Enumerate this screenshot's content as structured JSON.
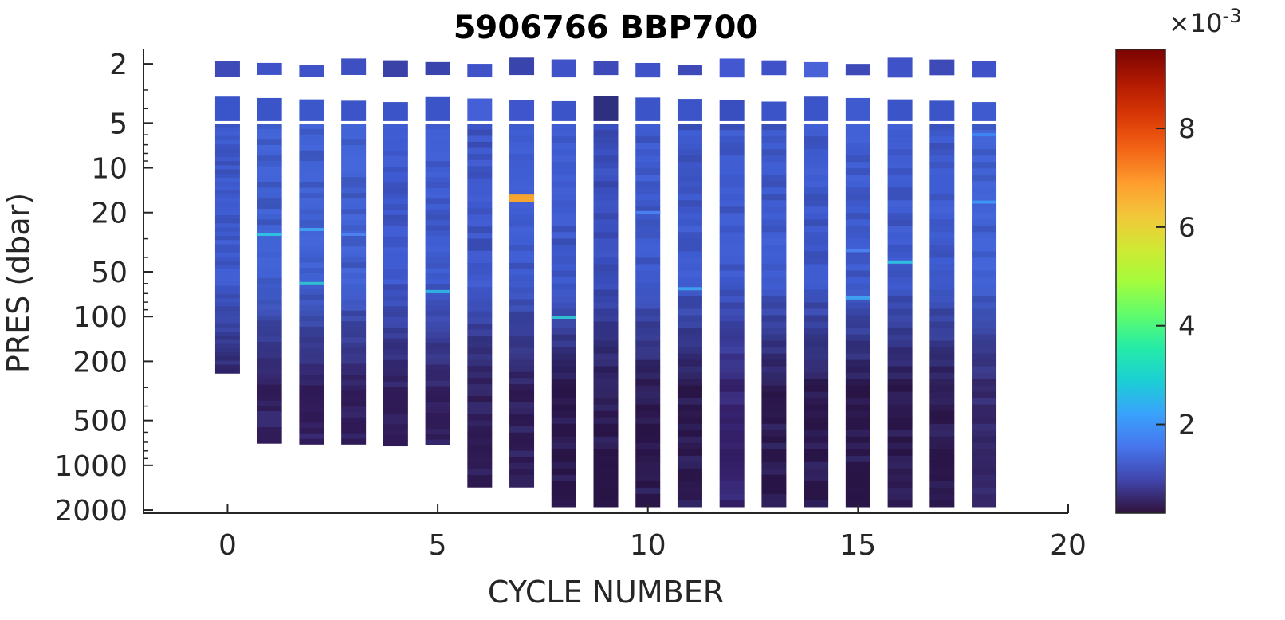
{
  "chart_data": {
    "type": "heatmap",
    "title": "5906766 BBP700",
    "xlabel": "CYCLE NUMBER",
    "ylabel": "PRES (dbar)",
    "xlim": [
      -2,
      20
    ],
    "ylim": [
      2100,
      1.6
    ],
    "yscale": "log",
    "x_ticks": [
      0,
      5,
      10,
      15,
      20
    ],
    "y_ticks": [
      2,
      5,
      10,
      20,
      50,
      100,
      200,
      500,
      1000,
      2000
    ],
    "colorbar": {
      "range": [
        0.0002,
        0.0096
      ],
      "ticks": [
        2,
        4,
        6,
        8
      ],
      "exponent_label": "×10",
      "exponent_value": "-3",
      "colormap": [
        "#30123b",
        "#4145ab",
        "#4675ed",
        "#39a2fc",
        "#1bcfd4",
        "#24eca6",
        "#61fc6c",
        "#a4fc3b",
        "#d1e834",
        "#f3c63a",
        "#fe9b2d",
        "#f36315",
        "#d93806",
        "#b11901",
        "#7a0402"
      ]
    },
    "cycles": [
      {
        "cycle": 0,
        "bottom": 240,
        "surface": "#3d4ab8",
        "upper": "#3a55c9",
        "mid": "#3e5bd0",
        "deep": "#2c1a55"
      },
      {
        "cycle": 1,
        "bottom": 710,
        "surface": "#3f52c8",
        "upper": "#3b55c8",
        "mid": "#4062d5",
        "deep": "#311c5a"
      },
      {
        "cycle": 2,
        "bottom": 720,
        "surface": "#3f52c8",
        "upper": "#3c57ca",
        "mid": "#4062d5",
        "deep": "#311c5a"
      },
      {
        "cycle": 3,
        "bottom": 720,
        "surface": "#3e4fc2",
        "upper": "#3b55c8",
        "mid": "#4163d6",
        "deep": "#311c5a"
      },
      {
        "cycle": 4,
        "bottom": 740,
        "surface": "#3a42a8",
        "upper": "#3b55c8",
        "mid": "#3e5ad0",
        "deep": "#311c5a"
      },
      {
        "cycle": 5,
        "bottom": 730,
        "surface": "#3a44ad",
        "upper": "#3b55c8",
        "mid": "#3f5dd2",
        "deep": "#311c5a"
      },
      {
        "cycle": 6,
        "bottom": 1400,
        "surface": "#3f52c8",
        "upper": "#4560d6",
        "mid": "#3d58cc",
        "deep": "#2e1a52"
      },
      {
        "cycle": 7,
        "bottom": 1400,
        "surface": "#3a44ad",
        "upper": "#3f55cc",
        "mid": "#3f5dd2",
        "deep": "#2e1a52"
      },
      {
        "cycle": 8,
        "bottom": 1900,
        "surface": "#3f52c8",
        "upper": "#3b55c8",
        "mid": "#3e5bd0",
        "deep": "#2a1548"
      },
      {
        "cycle": 9,
        "bottom": 1900,
        "surface": "#3d4ab8",
        "upper": "#2f2f80",
        "mid": "#3a4fbf",
        "deep": "#2a1548"
      },
      {
        "cycle": 10,
        "bottom": 1900,
        "surface": "#3f52c8",
        "upper": "#3b55c8",
        "mid": "#3f5dd2",
        "deep": "#2a1548"
      },
      {
        "cycle": 11,
        "bottom": 1900,
        "surface": "#3d4ab8",
        "upper": "#3b55c8",
        "mid": "#3e5bd0",
        "deep": "#2a1548"
      },
      {
        "cycle": 12,
        "bottom": 1900,
        "surface": "#4257d0",
        "upper": "#3a4fbf",
        "mid": "#3e5bd0",
        "deep": "#35206a"
      },
      {
        "cycle": 13,
        "bottom": 1900,
        "surface": "#3f52c8",
        "upper": "#3b55c8",
        "mid": "#3f5dd2",
        "deep": "#2a1548"
      },
      {
        "cycle": 14,
        "bottom": 1900,
        "surface": "#4a62d8",
        "upper": "#3b55c8",
        "mid": "#3e5bd0",
        "deep": "#2a1548"
      },
      {
        "cycle": 15,
        "bottom": 1900,
        "surface": "#3d4ab8",
        "upper": "#3f5acf",
        "mid": "#3f5dd2",
        "deep": "#2a1548"
      },
      {
        "cycle": 16,
        "bottom": 1900,
        "surface": "#3f52c8",
        "upper": "#3b55c8",
        "mid": "#3e5bd0",
        "deep": "#2a1548"
      },
      {
        "cycle": 17,
        "bottom": 1900,
        "surface": "#3d4ab8",
        "upper": "#3b55c8",
        "mid": "#3f5dd2",
        "deep": "#2a1548"
      },
      {
        "cycle": 18,
        "bottom": 1900,
        "surface": "#3f52c8",
        "upper": "#3f5acf",
        "mid": "#4062d5",
        "deep": "#352768"
      }
    ],
    "highlights": [
      {
        "cycle": 1,
        "pres": 28,
        "color": "#2fc0e0"
      },
      {
        "cycle": 2,
        "pres": 26,
        "color": "#3fa0f0"
      },
      {
        "cycle": 2,
        "pres": 60,
        "color": "#2fc0d0"
      },
      {
        "cycle": 3,
        "pres": 28,
        "color": "#4a80f0"
      },
      {
        "cycle": 5,
        "pres": 68,
        "color": "#2fb0e0"
      },
      {
        "cycle": 7,
        "pres": 16,
        "color": "#f5a530"
      },
      {
        "cycle": 8,
        "pres": 101,
        "color": "#2fc0d0"
      },
      {
        "cycle": 10,
        "pres": 20,
        "color": "#4a7ff0"
      },
      {
        "cycle": 11,
        "pres": 65,
        "color": "#3fa0f0"
      },
      {
        "cycle": 15,
        "pres": 36,
        "color": "#4a80f0"
      },
      {
        "cycle": 15,
        "pres": 75,
        "color": "#3fa0f0"
      },
      {
        "cycle": 16,
        "pres": 43,
        "color": "#2fc0e0"
      },
      {
        "cycle": 18,
        "pres": 17,
        "color": "#3f95f5"
      },
      {
        "cycle": 18,
        "pres": 6,
        "color": "#3d85f0"
      }
    ]
  }
}
